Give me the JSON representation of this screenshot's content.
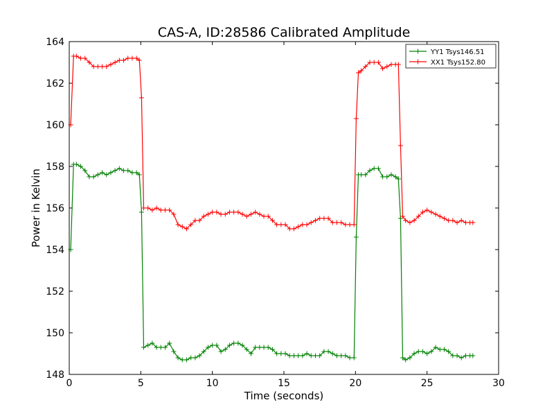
{
  "chart_data": {
    "type": "line",
    "title": "CAS-A, ID:28586 Calibrated Amplitude",
    "xlabel": "Time (seconds)",
    "ylabel": "Power in Kelvin",
    "xlim": [
      0,
      30
    ],
    "ylim": [
      148,
      164
    ],
    "xticks": [
      "0",
      "5",
      "10",
      "15",
      "20",
      "25",
      "30"
    ],
    "yticks": [
      "148",
      "150",
      "152",
      "154",
      "156",
      "158",
      "160",
      "162",
      "164"
    ],
    "grid": false,
    "legend_position": "top-right",
    "series": [
      {
        "name": "YY1 Tsys146.51",
        "color": "#008000",
        "marker": "+",
        "x": [
          0.1,
          0.3,
          0.5,
          0.8,
          1.1,
          1.4,
          1.7,
          2.0,
          2.3,
          2.6,
          2.9,
          3.2,
          3.5,
          3.8,
          4.1,
          4.4,
          4.7,
          4.9,
          5.05,
          5.2,
          5.5,
          5.8,
          6.1,
          6.4,
          6.7,
          7.0,
          7.3,
          7.6,
          7.9,
          8.2,
          8.5,
          8.8,
          9.1,
          9.4,
          9.7,
          10.0,
          10.3,
          10.6,
          10.9,
          11.2,
          11.5,
          11.8,
          12.1,
          12.4,
          12.7,
          13.0,
          13.3,
          13.6,
          13.9,
          14.2,
          14.5,
          14.8,
          15.1,
          15.4,
          15.7,
          16.0,
          16.3,
          16.6,
          16.9,
          17.2,
          17.5,
          17.8,
          18.1,
          18.4,
          18.7,
          19.0,
          19.3,
          19.6,
          19.9,
          20.05,
          20.2,
          20.4,
          20.7,
          21.0,
          21.3,
          21.6,
          21.9,
          22.2,
          22.5,
          22.8,
          23.0,
          23.15,
          23.3,
          23.5,
          23.8,
          24.1,
          24.4,
          24.7,
          25.0,
          25.3,
          25.6,
          25.9,
          26.2,
          26.5,
          26.8,
          27.1,
          27.4,
          27.7,
          28.0,
          28.2
        ],
        "values": [
          154.0,
          158.1,
          158.1,
          158.0,
          157.8,
          157.5,
          157.5,
          157.6,
          157.7,
          157.6,
          157.7,
          157.8,
          157.9,
          157.8,
          157.8,
          157.7,
          157.7,
          157.6,
          155.8,
          149.3,
          149.4,
          149.5,
          149.3,
          149.3,
          149.3,
          149.5,
          149.1,
          148.8,
          148.7,
          148.7,
          148.8,
          148.8,
          148.9,
          149.1,
          149.3,
          149.4,
          149.4,
          149.1,
          149.2,
          149.4,
          149.5,
          149.5,
          149.4,
          149.2,
          149.0,
          149.3,
          149.3,
          149.3,
          149.3,
          149.2,
          149.0,
          149.0,
          149.0,
          148.9,
          148.9,
          148.9,
          148.9,
          149.0,
          148.9,
          148.9,
          148.9,
          149.1,
          149.1,
          149.0,
          148.9,
          148.9,
          148.9,
          148.8,
          148.8,
          154.6,
          157.6,
          157.6,
          157.6,
          157.8,
          157.9,
          157.9,
          157.5,
          157.5,
          157.6,
          157.5,
          157.4,
          155.5,
          148.8,
          148.7,
          148.8,
          149.0,
          149.1,
          149.1,
          149.0,
          149.1,
          149.3,
          149.2,
          149.2,
          149.1,
          148.9,
          148.9,
          148.8,
          148.9,
          148.9,
          148.9
        ]
      },
      {
        "name": "XX1 Tsys152.80",
        "color": "#ff0000",
        "marker": "+",
        "x": [
          0.1,
          0.3,
          0.5,
          0.8,
          1.1,
          1.4,
          1.7,
          2.0,
          2.3,
          2.6,
          2.9,
          3.2,
          3.5,
          3.8,
          4.1,
          4.4,
          4.7,
          4.9,
          5.05,
          5.2,
          5.5,
          5.8,
          6.1,
          6.4,
          6.7,
          7.0,
          7.3,
          7.6,
          7.9,
          8.2,
          8.5,
          8.8,
          9.1,
          9.4,
          9.7,
          10.0,
          10.3,
          10.6,
          10.9,
          11.2,
          11.5,
          11.8,
          12.1,
          12.4,
          12.7,
          13.0,
          13.3,
          13.6,
          13.9,
          14.2,
          14.5,
          14.8,
          15.1,
          15.4,
          15.7,
          16.0,
          16.3,
          16.6,
          16.9,
          17.2,
          17.5,
          17.8,
          18.1,
          18.4,
          18.7,
          19.0,
          19.3,
          19.6,
          19.9,
          20.05,
          20.2,
          20.4,
          20.7,
          21.0,
          21.3,
          21.6,
          21.9,
          22.2,
          22.5,
          22.8,
          23.0,
          23.15,
          23.3,
          23.5,
          23.8,
          24.1,
          24.4,
          24.7,
          25.0,
          25.3,
          25.6,
          25.9,
          26.2,
          26.5,
          26.8,
          27.1,
          27.4,
          27.7,
          28.0,
          28.2
        ],
        "values": [
          160.0,
          163.3,
          163.3,
          163.2,
          163.2,
          163.0,
          162.8,
          162.8,
          162.8,
          162.8,
          162.9,
          163.0,
          163.1,
          163.1,
          163.2,
          163.2,
          163.2,
          163.1,
          161.3,
          156.0,
          156.0,
          155.9,
          156.0,
          155.9,
          155.9,
          155.9,
          155.7,
          155.2,
          155.1,
          155.0,
          155.2,
          155.4,
          155.4,
          155.6,
          155.7,
          155.8,
          155.8,
          155.7,
          155.7,
          155.8,
          155.8,
          155.8,
          155.7,
          155.6,
          155.7,
          155.8,
          155.7,
          155.6,
          155.6,
          155.4,
          155.2,
          155.2,
          155.2,
          155.0,
          155.0,
          155.1,
          155.2,
          155.2,
          155.3,
          155.4,
          155.5,
          155.5,
          155.5,
          155.3,
          155.3,
          155.3,
          155.2,
          155.2,
          155.2,
          160.3,
          162.5,
          162.6,
          162.8,
          163.0,
          163.0,
          163.0,
          162.7,
          162.8,
          162.9,
          162.9,
          162.9,
          159.0,
          155.6,
          155.4,
          155.3,
          155.4,
          155.6,
          155.8,
          155.9,
          155.8,
          155.7,
          155.6,
          155.5,
          155.4,
          155.4,
          155.3,
          155.4,
          155.3,
          155.3,
          155.3
        ]
      }
    ]
  }
}
